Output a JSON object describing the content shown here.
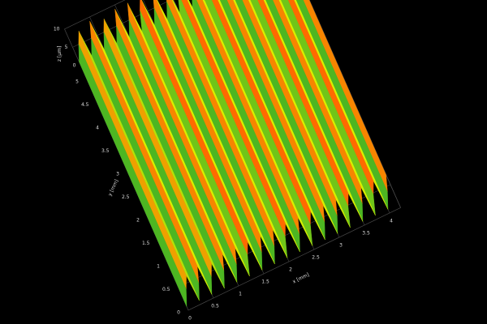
{
  "chart_data": {
    "type": "surface",
    "x_label": "x [mm]",
    "y_label": "y [mm]",
    "z_label": "z [µm]",
    "xlim": [
      0,
      4.22
    ],
    "ylim": [
      0,
      5.3
    ],
    "zlim": [
      0,
      10
    ],
    "xticks": [
      0,
      0.5,
      1,
      1.5,
      2,
      2.5,
      3,
      3.5,
      4
    ],
    "yticks": [
      0,
      0.5,
      1,
      1.5,
      2,
      2.5,
      3,
      3.5,
      4,
      4.5,
      5
    ],
    "zticks": [
      0,
      5,
      10
    ],
    "x": [
      0,
      0.12,
      0.22,
      0.25,
      0.37,
      0.47,
      0.5,
      0.62,
      0.72,
      0.75,
      0.87,
      0.97,
      1,
      1.12,
      1.22,
      1.25,
      1.37,
      1.47,
      1.5,
      1.62,
      1.72,
      1.75,
      1.87,
      1.97,
      2,
      2.12,
      2.22,
      2.25,
      2.37,
      2.47,
      2.5,
      2.62,
      2.72,
      2.75,
      2.87,
      2.97,
      3,
      3.12,
      3.22,
      3.25,
      3.37,
      3.47,
      3.5,
      3.62,
      3.72,
      3.75,
      3.87,
      3.97,
      4,
      4.12,
      4.22
    ],
    "z": [
      1,
      5,
      8,
      1,
      5,
      9,
      1,
      5,
      8,
      1,
      5,
      9,
      1,
      5,
      9,
      1,
      6,
      9,
      1,
      5,
      9,
      1,
      5,
      9,
      1,
      6,
      9,
      1,
      5,
      9,
      1,
      6,
      9,
      1,
      5,
      9,
      1,
      5,
      9,
      1,
      6,
      9,
      1,
      5,
      9,
      1,
      6,
      9,
      1,
      5,
      9
    ],
    "colorscale": [
      "#1a2fd0",
      "#2aa82a",
      "#d8f000",
      "#ff6a00",
      "#ff2a00"
    ],
    "grid": true
  }
}
